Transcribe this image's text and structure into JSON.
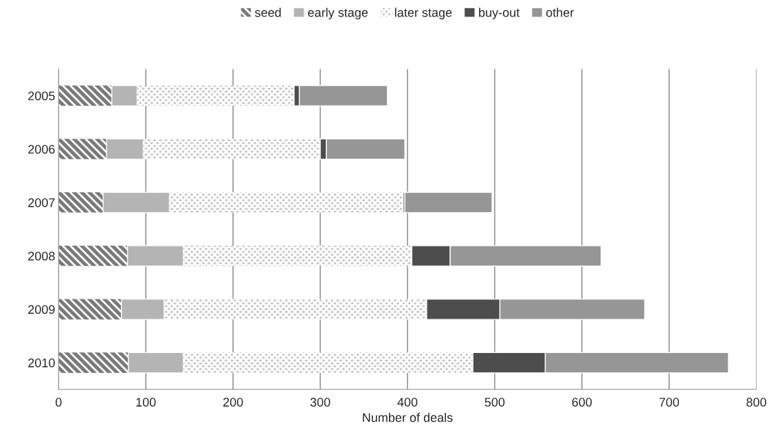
{
  "chart_data": {
    "type": "bar",
    "orientation": "horizontal",
    "stacked": true,
    "xlabel": "Number of deals",
    "categories": [
      "2005",
      "2006",
      "2007",
      "2008",
      "2009",
      "2010"
    ],
    "series": [
      {
        "name": "seed",
        "color": "#7a7a7a",
        "values": [
          61,
          55,
          51,
          79,
          72,
          80
        ]
      },
      {
        "name": "early stage",
        "color": "#b4b4b4",
        "values": [
          29,
          42,
          76,
          64,
          49,
          63
        ]
      },
      {
        "name": "later stage",
        "color": "#c8c8c8",
        "values": [
          180,
          203,
          268,
          262,
          301,
          332
        ]
      },
      {
        "name": "buy-out",
        "color": "#4d4d4d",
        "values": [
          6,
          7,
          2,
          44,
          84,
          83
        ]
      },
      {
        "name": "other",
        "color": "#969696",
        "values": [
          101,
          90,
          100,
          173,
          166,
          210
        ]
      }
    ],
    "xlim": [
      0,
      800
    ],
    "xticks": [
      0,
      100,
      200,
      300,
      400,
      500,
      600,
      700,
      800
    ],
    "grid": "x",
    "legend": "top"
  }
}
